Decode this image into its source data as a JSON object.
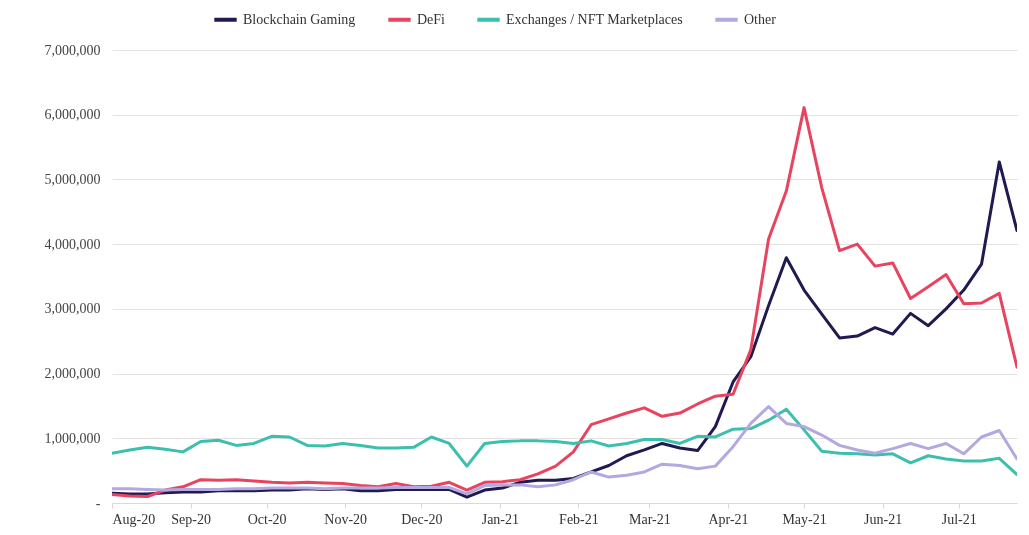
{
  "chart_data": {
    "type": "line",
    "legend": "top",
    "grid": "y",
    "x": [
      "2020-08-01",
      "2020-08-08",
      "2020-08-15",
      "2020-08-22",
      "2020-08-29",
      "2020-09-05",
      "2020-09-12",
      "2020-09-19",
      "2020-09-26",
      "2020-10-03",
      "2020-10-10",
      "2020-10-17",
      "2020-10-24",
      "2020-10-31",
      "2020-11-07",
      "2020-11-14",
      "2020-11-21",
      "2020-11-28",
      "2020-12-05",
      "2020-12-12",
      "2020-12-19",
      "2020-12-26",
      "2021-01-02",
      "2021-01-09",
      "2021-01-16",
      "2021-01-23",
      "2021-01-30",
      "2021-02-06",
      "2021-02-13",
      "2021-02-20",
      "2021-02-27",
      "2021-03-06",
      "2021-03-13",
      "2021-03-20",
      "2021-03-27",
      "2021-04-03",
      "2021-04-10",
      "2021-04-17",
      "2021-04-24",
      "2021-05-01",
      "2021-05-08",
      "2021-05-15",
      "2021-05-22",
      "2021-05-29",
      "2021-06-05",
      "2021-06-12",
      "2021-06-19",
      "2021-06-26",
      "2021-07-03",
      "2021-07-10",
      "2021-07-17",
      "2021-07-24"
    ],
    "xlim": [
      "2020-08-01",
      "2021-07-24"
    ],
    "xticks": [
      {
        "value": "2020-08-01",
        "label": "Aug-20"
      },
      {
        "value": "2020-09-01",
        "label": "Sep-20"
      },
      {
        "value": "2020-10-01",
        "label": "Oct-20"
      },
      {
        "value": "2020-11-01",
        "label": "Nov-20"
      },
      {
        "value": "2020-12-01",
        "label": "Dec-20"
      },
      {
        "value": "2021-01-01",
        "label": "Jan-21"
      },
      {
        "value": "2021-02-01",
        "label": "Feb-21"
      },
      {
        "value": "2021-03-01",
        "label": "Mar-21"
      },
      {
        "value": "2021-04-01",
        "label": "Apr-21"
      },
      {
        "value": "2021-05-01",
        "label": "May-21"
      },
      {
        "value": "2021-06-01",
        "label": "Jun-21"
      },
      {
        "value": "2021-07-01",
        "label": "Jul-21"
      }
    ],
    "ylim": [
      0,
      7000000
    ],
    "yticks": [
      {
        "value": 0,
        "label": "-"
      },
      {
        "value": 1000000,
        "label": "1,000,000"
      },
      {
        "value": 2000000,
        "label": "2,000,000"
      },
      {
        "value": 3000000,
        "label": "3,000,000"
      },
      {
        "value": 4000000,
        "label": "4,000,000"
      },
      {
        "value": 5000000,
        "label": "5,000,000"
      },
      {
        "value": 6000000,
        "label": "6,000,000"
      },
      {
        "value": 7000000,
        "label": "7,000,000"
      }
    ],
    "series": [
      {
        "name": "Blockchain Gaming",
        "color": "#1f1a4f",
        "values": [
          150000,
          140000,
          140000,
          160000,
          170000,
          170000,
          190000,
          190000,
          190000,
          200000,
          200000,
          220000,
          210000,
          220000,
          190000,
          190000,
          210000,
          210000,
          210000,
          210000,
          90000,
          200000,
          230000,
          320000,
          350000,
          350000,
          380000,
          480000,
          580000,
          730000,
          820000,
          920000,
          850000,
          810000,
          1180000,
          1870000,
          2260000,
          3050000,
          3790000,
          3290000,
          2920000,
          2550000,
          2580000,
          2710000,
          2610000,
          2930000,
          2740000,
          3000000,
          3290000,
          3690000,
          5270000,
          4210000
        ]
      },
      {
        "name": "DeFi",
        "color": "#e8445f",
        "values": [
          130000,
          110000,
          100000,
          200000,
          250000,
          360000,
          350000,
          360000,
          340000,
          320000,
          310000,
          320000,
          310000,
          300000,
          270000,
          250000,
          300000,
          250000,
          260000,
          320000,
          200000,
          320000,
          330000,
          360000,
          450000,
          570000,
          790000,
          1210000,
          1300000,
          1390000,
          1470000,
          1340000,
          1390000,
          1530000,
          1650000,
          1680000,
          2370000,
          4080000,
          4820000,
          6110000,
          4870000,
          3900000,
          4000000,
          3660000,
          3710000,
          3160000,
          3340000,
          3530000,
          3080000,
          3090000,
          3240000,
          2100000
        ]
      },
      {
        "name": "Exchanges / NFT Marketplaces",
        "color": "#3dbfae",
        "values": [
          770000,
          820000,
          860000,
          830000,
          790000,
          950000,
          970000,
          890000,
          920000,
          1030000,
          1020000,
          890000,
          880000,
          920000,
          890000,
          850000,
          850000,
          860000,
          1020000,
          920000,
          570000,
          920000,
          950000,
          960000,
          960000,
          950000,
          920000,
          960000,
          880000,
          920000,
          980000,
          980000,
          920000,
          1030000,
          1020000,
          1140000,
          1150000,
          1280000,
          1450000,
          1130000,
          800000,
          770000,
          760000,
          740000,
          760000,
          620000,
          730000,
          680000,
          650000,
          650000,
          690000,
          440000
        ]
      },
      {
        "name": "Other",
        "color": "#b3a8e0",
        "values": [
          220000,
          220000,
          210000,
          200000,
          210000,
          210000,
          210000,
          220000,
          220000,
          230000,
          230000,
          230000,
          220000,
          230000,
          230000,
          230000,
          240000,
          240000,
          240000,
          240000,
          140000,
          270000,
          280000,
          280000,
          250000,
          280000,
          360000,
          480000,
          400000,
          430000,
          480000,
          600000,
          580000,
          530000,
          570000,
          870000,
          1230000,
          1490000,
          1230000,
          1180000,
          1050000,
          890000,
          820000,
          770000,
          840000,
          920000,
          840000,
          920000,
          760000,
          1020000,
          1120000,
          680000
        ]
      }
    ]
  }
}
